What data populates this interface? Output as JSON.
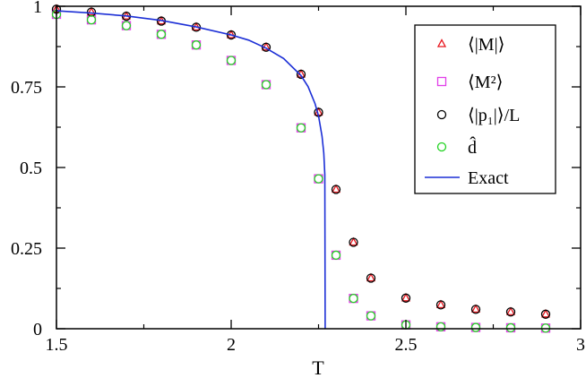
{
  "chart_data": {
    "type": "scatter",
    "xlabel": "T",
    "ylabel": "",
    "xlim": [
      1.5,
      3
    ],
    "ylim": [
      0,
      1
    ],
    "xticks": [
      1.5,
      2,
      2.5,
      3
    ],
    "xtick_labels": [
      "1.5",
      "2",
      "2.5",
      "3"
    ],
    "yticks": [
      0,
      0.25,
      0.5,
      0.75,
      1
    ],
    "ytick_labels": [
      "0",
      "0.25",
      "0.5",
      "0.75",
      "1"
    ],
    "grid": false,
    "legend_position": "top-right",
    "series": [
      {
        "name": "⟨|M|⟩",
        "marker": "triangle",
        "color": "#e8141c",
        "x": [
          1.5,
          1.6,
          1.7,
          1.8,
          1.9,
          2.0,
          2.1,
          2.2,
          2.25,
          2.3,
          2.35,
          2.4,
          2.5,
          2.6,
          2.7,
          2.8,
          2.9
        ],
        "y": [
          0.991,
          0.982,
          0.969,
          0.954,
          0.935,
          0.911,
          0.873,
          0.789,
          0.671,
          0.432,
          0.268,
          0.157,
          0.095,
          0.074,
          0.06,
          0.052,
          0.045
        ]
      },
      {
        "name": "⟨M²⟩",
        "marker": "square",
        "color": "#e23ee8",
        "x": [
          1.5,
          1.6,
          1.7,
          1.8,
          1.9,
          2.0,
          2.1,
          2.2,
          2.25,
          2.3,
          2.35,
          2.4,
          2.5,
          2.6,
          2.7,
          2.8,
          2.9
        ],
        "y": [
          0.975,
          0.958,
          0.94,
          0.913,
          0.88,
          0.832,
          0.757,
          0.623,
          0.465,
          0.228,
          0.094,
          0.04,
          0.012,
          0.006,
          0.004,
          0.003,
          0.002
        ]
      },
      {
        "name": "⟨|p₁|⟩/L",
        "marker": "circle",
        "color": "#000000",
        "x": [
          1.5,
          1.6,
          1.7,
          1.8,
          1.9,
          2.0,
          2.1,
          2.2,
          2.25,
          2.3,
          2.35,
          2.4,
          2.5,
          2.6,
          2.7,
          2.8,
          2.9
        ],
        "y": [
          0.991,
          0.982,
          0.969,
          0.954,
          0.935,
          0.911,
          0.873,
          0.789,
          0.671,
          0.432,
          0.268,
          0.157,
          0.095,
          0.074,
          0.06,
          0.052,
          0.045
        ]
      },
      {
        "name": "d̂",
        "marker": "circle",
        "color": "#22d322",
        "x": [
          1.5,
          1.6,
          1.7,
          1.8,
          1.9,
          2.0,
          2.1,
          2.2,
          2.25,
          2.3,
          2.35,
          2.4,
          2.5,
          2.6,
          2.7,
          2.8,
          2.9
        ],
        "y": [
          0.975,
          0.958,
          0.94,
          0.913,
          0.88,
          0.832,
          0.757,
          0.623,
          0.465,
          0.228,
          0.094,
          0.04,
          0.012,
          0.006,
          0.004,
          0.003,
          0.002
        ]
      },
      {
        "name": "Exact",
        "marker": "line",
        "color": "#1c2fd6",
        "x": [
          1.5,
          1.6,
          1.7,
          1.8,
          1.9,
          2.0,
          2.05,
          2.1,
          2.15,
          2.2,
          2.22,
          2.24,
          2.25,
          2.26,
          2.265,
          2.268,
          2.269
        ],
        "y": [
          0.986,
          0.979,
          0.97,
          0.956,
          0.936,
          0.911,
          0.895,
          0.87,
          0.838,
          0.785,
          0.751,
          0.698,
          0.66,
          0.597,
          0.545,
          0.478,
          0.0
        ]
      }
    ]
  }
}
